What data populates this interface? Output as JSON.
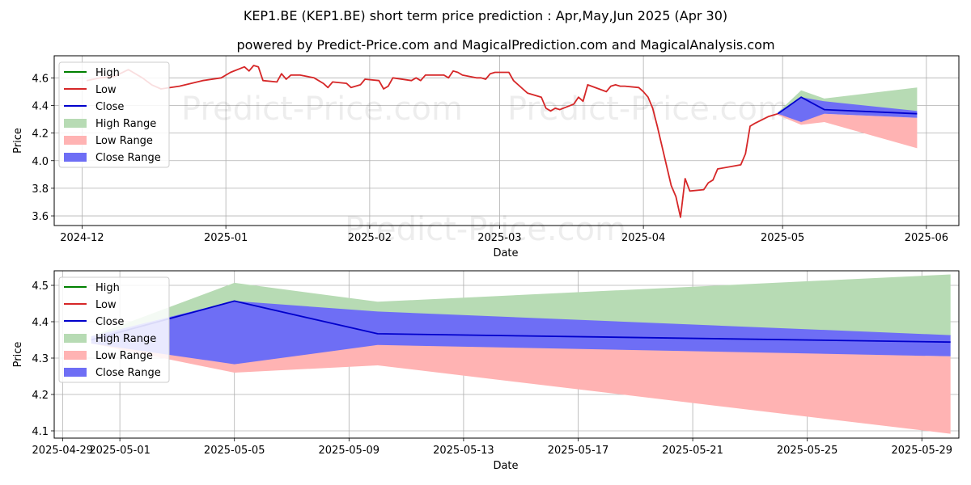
{
  "title": "KEP1.BE (KEP1.BE) short term price prediction : Apr,May,Jun 2025 (Apr 30)",
  "subtitle": "powered by Predict-Price.com and MagicalPrediction.com and MagicalAnalysis.com",
  "watermark": "Predict-Price.com",
  "colors": {
    "high": "#008000",
    "low": "#d62728",
    "close": "#0000cc",
    "high_range": "#b7dbb4",
    "low_range": "#ffb3b3",
    "close_range": "#6e6ef5"
  },
  "chart_data": [
    {
      "type": "line",
      "xlabel": "Date",
      "ylabel": "Price",
      "x_ticks": [
        "2024-12",
        "2025-01",
        "2025-02",
        "2025-03",
        "2025-04",
        "2025-05",
        "2025-06"
      ],
      "y_ticks": [
        "3.6",
        "3.8",
        "4.0",
        "4.2",
        "4.4",
        "4.6"
      ],
      "xlim": [
        "2024-11-25",
        "2025-06-08"
      ],
      "ylim": [
        3.53,
        4.76
      ],
      "grid": true,
      "legend_position": "top-left",
      "legend": [
        "High",
        "Low",
        "Close",
        "High Range",
        "Low Range",
        "Close Range"
      ],
      "series": [
        {
          "name": "Low",
          "points": [
            [
              "2024-12-02",
              4.58
            ],
            [
              "2024-12-05",
              4.6
            ],
            [
              "2024-12-08",
              4.61
            ],
            [
              "2024-12-11",
              4.66
            ],
            [
              "2024-12-14",
              4.6
            ],
            [
              "2024-12-16",
              4.55
            ],
            [
              "2024-12-18",
              4.52
            ],
            [
              "2024-12-22",
              4.54
            ],
            [
              "2024-12-27",
              4.58
            ],
            [
              "2024-12-31",
              4.6
            ],
            [
              "2025-01-02",
              4.64
            ],
            [
              "2025-01-05",
              4.68
            ],
            [
              "2025-01-06",
              4.65
            ],
            [
              "2025-01-07",
              4.69
            ],
            [
              "2025-01-08",
              4.68
            ],
            [
              "2025-01-09",
              4.58
            ],
            [
              "2025-01-12",
              4.57
            ],
            [
              "2025-01-13",
              4.63
            ],
            [
              "2025-01-14",
              4.59
            ],
            [
              "2025-01-15",
              4.62
            ],
            [
              "2025-01-17",
              4.62
            ],
            [
              "2025-01-20",
              4.6
            ],
            [
              "2025-01-22",
              4.56
            ],
            [
              "2025-01-23",
              4.53
            ],
            [
              "2025-01-24",
              4.57
            ],
            [
              "2025-01-27",
              4.56
            ],
            [
              "2025-01-28",
              4.53
            ],
            [
              "2025-01-30",
              4.55
            ],
            [
              "2025-01-31",
              4.59
            ],
            [
              "2025-02-03",
              4.58
            ],
            [
              "2025-02-04",
              4.52
            ],
            [
              "2025-02-05",
              4.54
            ],
            [
              "2025-02-06",
              4.6
            ],
            [
              "2025-02-10",
              4.58
            ],
            [
              "2025-02-11",
              4.6
            ],
            [
              "2025-02-12",
              4.58
            ],
            [
              "2025-02-13",
              4.62
            ],
            [
              "2025-02-17",
              4.62
            ],
            [
              "2025-02-18",
              4.6
            ],
            [
              "2025-02-19",
              4.65
            ],
            [
              "2025-02-20",
              4.64
            ],
            [
              "2025-02-21",
              4.62
            ],
            [
              "2025-02-24",
              4.6
            ],
            [
              "2025-02-25",
              4.6
            ],
            [
              "2025-02-26",
              4.59
            ],
            [
              "2025-02-27",
              4.63
            ],
            [
              "2025-02-28",
              4.64
            ],
            [
              "2025-03-03",
              4.64
            ],
            [
              "2025-03-04",
              4.58
            ],
            [
              "2025-03-06",
              4.52
            ],
            [
              "2025-03-07",
              4.49
            ],
            [
              "2025-03-10",
              4.46
            ],
            [
              "2025-03-11",
              4.38
            ],
            [
              "2025-03-12",
              4.36
            ],
            [
              "2025-03-13",
              4.38
            ],
            [
              "2025-03-14",
              4.37
            ],
            [
              "2025-03-17",
              4.41
            ],
            [
              "2025-03-18",
              4.46
            ],
            [
              "2025-03-19",
              4.43
            ],
            [
              "2025-03-20",
              4.55
            ],
            [
              "2025-03-24",
              4.5
            ],
            [
              "2025-03-25",
              4.54
            ],
            [
              "2025-03-26",
              4.55
            ],
            [
              "2025-03-27",
              4.54
            ],
            [
              "2025-03-28",
              4.54
            ],
            [
              "2025-03-31",
              4.53
            ],
            [
              "2025-04-01",
              4.5
            ],
            [
              "2025-04-02",
              4.46
            ],
            [
              "2025-04-03",
              4.38
            ],
            [
              "2025-04-04",
              4.25
            ],
            [
              "2025-04-07",
              3.82
            ],
            [
              "2025-04-08",
              3.74
            ],
            [
              "2025-04-09",
              3.59
            ],
            [
              "2025-04-10",
              3.87
            ],
            [
              "2025-04-11",
              3.78
            ],
            [
              "2025-04-14",
              3.79
            ],
            [
              "2025-04-15",
              3.84
            ],
            [
              "2025-04-16",
              3.86
            ],
            [
              "2025-04-17",
              3.94
            ],
            [
              "2025-04-22",
              3.97
            ],
            [
              "2025-04-23",
              4.05
            ],
            [
              "2025-04-24",
              4.25
            ],
            [
              "2025-04-25",
              4.27
            ],
            [
              "2025-04-28",
              4.32
            ],
            [
              "2025-04-29",
              4.33
            ],
            [
              "2025-04-30",
              4.34
            ]
          ]
        },
        {
          "name": "Close",
          "points": [
            [
              "2025-04-30",
              4.34
            ],
            [
              "2025-05-05",
              4.46
            ],
            [
              "2025-05-10",
              4.37
            ],
            [
              "2025-05-30",
              4.34
            ]
          ]
        }
      ],
      "ranges": [
        {
          "name": "High Range",
          "x": [
            "2025-04-30",
            "2025-05-05",
            "2025-05-10",
            "2025-05-30"
          ],
          "upper": [
            4.35,
            4.51,
            4.45,
            4.53
          ],
          "lower": [
            4.34,
            4.37,
            4.38,
            4.36
          ]
        },
        {
          "name": "Low Range",
          "x": [
            "2025-04-30",
            "2025-05-05",
            "2025-05-10",
            "2025-05-30"
          ],
          "upper": [
            4.34,
            4.33,
            4.34,
            4.31
          ],
          "lower": [
            4.33,
            4.26,
            4.28,
            4.09
          ]
        },
        {
          "name": "Close Range",
          "x": [
            "2025-04-30",
            "2025-05-05",
            "2025-05-10",
            "2025-05-30"
          ],
          "upper": [
            4.35,
            4.46,
            4.43,
            4.36
          ],
          "lower": [
            4.34,
            4.28,
            4.34,
            4.31
          ]
        }
      ]
    },
    {
      "type": "line",
      "xlabel": "Date",
      "ylabel": "Price",
      "x_ticks": [
        "2025-04-29",
        "2025-05-01",
        "2025-05-05",
        "2025-05-09",
        "2025-05-13",
        "2025-05-17",
        "2025-05-21",
        "2025-05-25",
        "2025-05-29"
      ],
      "y_ticks": [
        "4.1",
        "4.2",
        "4.3",
        "4.4",
        "4.5"
      ],
      "xlim": [
        "2025-04-28 17:00",
        "2025-05-30 07:00"
      ],
      "ylim": [
        4.08,
        4.54
      ],
      "grid": true,
      "legend_position": "top-left",
      "legend": [
        "High",
        "Low",
        "Close",
        "High Range",
        "Low Range",
        "Close Range"
      ],
      "series": [
        {
          "name": "Close",
          "points": [
            [
              "2025-04-30",
              4.35
            ],
            [
              "2025-05-05",
              4.457
            ],
            [
              "2025-05-10",
              4.367
            ],
            [
              "2025-05-30",
              4.344
            ]
          ]
        }
      ],
      "ranges": [
        {
          "name": "High Range",
          "x": [
            "2025-04-30",
            "2025-05-05",
            "2025-05-10",
            "2025-05-30"
          ],
          "upper": [
            4.36,
            4.507,
            4.455,
            4.53
          ],
          "lower": [
            4.35,
            4.37,
            4.38,
            4.36
          ]
        },
        {
          "name": "Low Range",
          "x": [
            "2025-04-30",
            "2025-05-05",
            "2025-05-10",
            "2025-05-30"
          ],
          "upper": [
            4.345,
            4.32,
            4.34,
            4.305
          ],
          "lower": [
            4.34,
            4.26,
            4.28,
            4.092
          ]
        },
        {
          "name": "Close Range",
          "x": [
            "2025-04-30",
            "2025-05-05",
            "2025-05-10",
            "2025-05-30"
          ],
          "upper": [
            4.36,
            4.457,
            4.428,
            4.363
          ],
          "lower": [
            4.34,
            4.283,
            4.336,
            4.305
          ]
        }
      ]
    }
  ]
}
